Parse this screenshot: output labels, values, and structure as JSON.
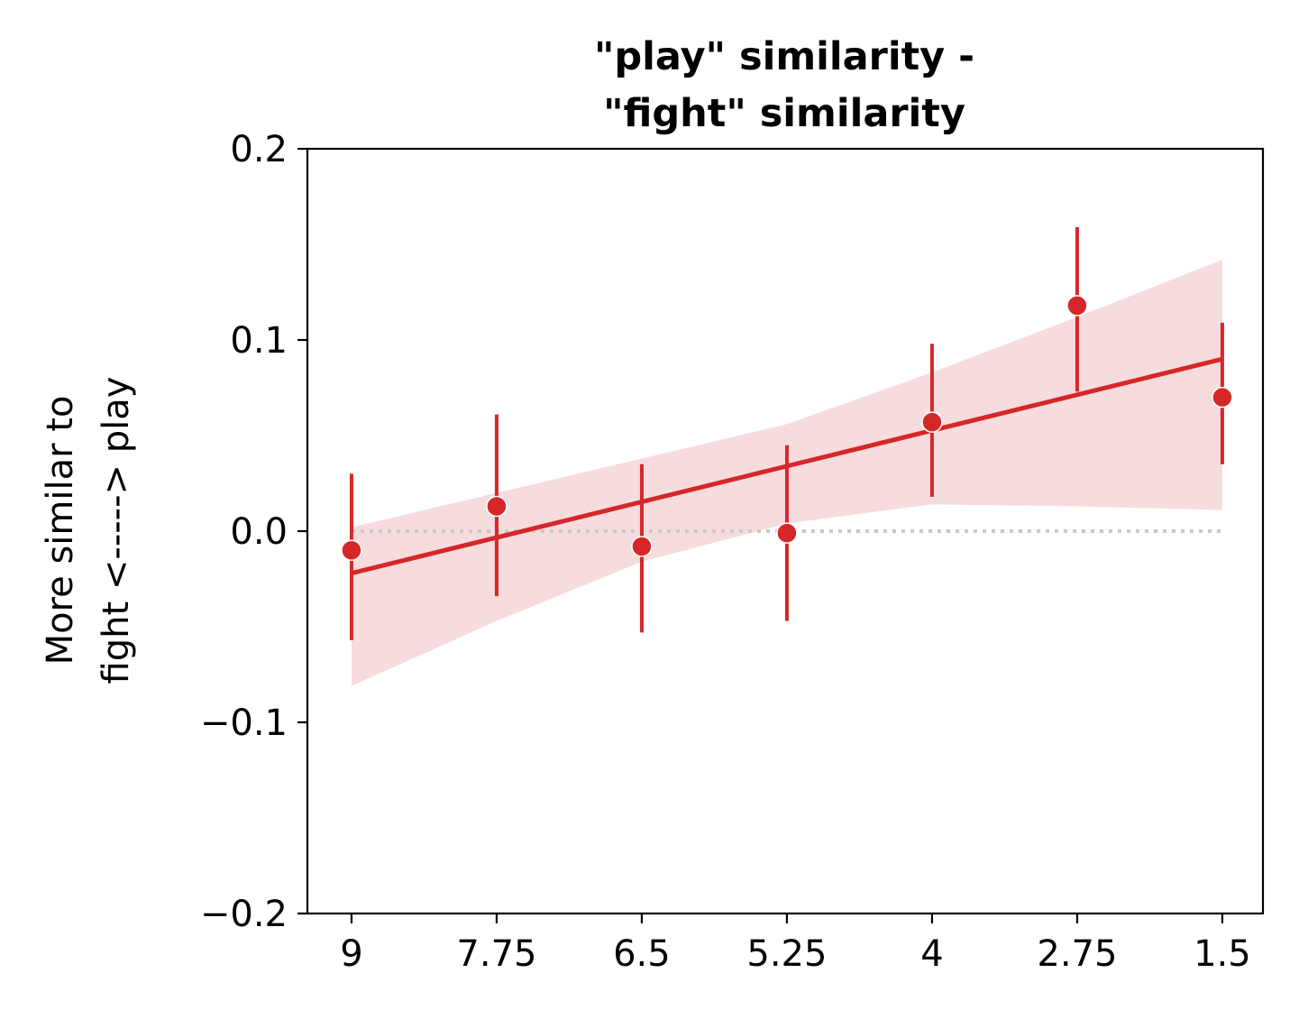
{
  "chart_data": {
    "type": "scatter",
    "title_lines": [
      "\"play\" similarity -",
      "\"fight\" similarity"
    ],
    "ylabel_lines": [
      "More similar to",
      "fight <-----> play"
    ],
    "xlabel": "",
    "x_tick_labels": [
      "9",
      "7.75",
      "6.5",
      "5.25",
      "4",
      "2.75",
      "1.5"
    ],
    "x_values": [
      9,
      7.75,
      6.5,
      5.25,
      4,
      2.75,
      1.5
    ],
    "xlim": [
      9.38,
      1.15
    ],
    "y_tick_labels": [
      "0.2",
      "0.1",
      "0.0",
      "−0.1",
      "−0.2"
    ],
    "y_ticks": [
      0.2,
      0.1,
      0.0,
      -0.1,
      -0.2
    ],
    "ylim": [
      -0.2,
      0.2
    ],
    "series": [
      {
        "values": [
          -0.01,
          0.013,
          -0.008,
          -0.001,
          0.057,
          0.118,
          0.07
        ],
        "err_low": [
          -0.057,
          -0.034,
          -0.053,
          -0.047,
          0.018,
          0.073,
          0.035
        ],
        "err_high": [
          0.03,
          0.061,
          0.035,
          0.045,
          0.098,
          0.159,
          0.109
        ],
        "color": "#d62728"
      }
    ],
    "regression": {
      "x": [
        9,
        1.5
      ],
      "y": [
        -0.022,
        0.09
      ],
      "ci_x": [
        9,
        7.75,
        6.5,
        5.25,
        4,
        2.75,
        1.5
      ],
      "ci_upper": [
        0.002,
        0.02,
        0.038,
        0.056,
        0.083,
        0.112,
        0.142
      ],
      "ci_lower": [
        -0.081,
        -0.047,
        -0.016,
        0.004,
        0.014,
        0.013,
        0.011
      ],
      "color": "#d62728",
      "band_color": "#f7dcde"
    },
    "reference_line": {
      "y": 0.0,
      "style": "dotted",
      "color": "#c8c8c8"
    },
    "grid": false,
    "legend": "none"
  }
}
